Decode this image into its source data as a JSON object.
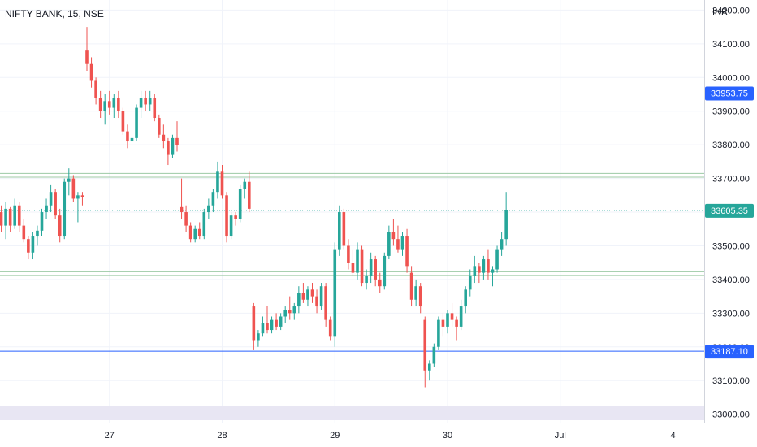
{
  "chart_data": {
    "type": "candlestick",
    "title": "NIFTY BANK, 15, NSE",
    "currency": "INR",
    "ylim": [
      32975,
      34230
    ],
    "y_ticks": [
      33000,
      33100,
      33200,
      33300,
      33400,
      33500,
      33600,
      33700,
      33800,
      33900,
      34000,
      34100,
      34200
    ],
    "y_tick_labels": [
      "33000.00",
      "33100.00",
      "33200.00",
      "33300.00",
      "33400.00",
      "33500.00",
      "33600.00",
      "33700.00",
      "33800.00",
      "33900.00",
      "34000.00",
      "34100.00",
      "34200.00"
    ],
    "x_ticks": [
      {
        "label": "27",
        "bar": 25
      },
      {
        "label": "28",
        "bar": 50
      },
      {
        "label": "29",
        "bar": 75
      },
      {
        "label": "30",
        "bar": 100
      },
      {
        "label": "Jul",
        "bar": 125
      },
      {
        "label": "4",
        "bar": 150
      }
    ],
    "last_price": {
      "value": 33605.35,
      "label": "33605.35",
      "color": "#26a69a"
    },
    "horizontal_levels": [
      {
        "value": 33953.75,
        "label": "33953.75",
        "color": "#2962ff",
        "show_tag": true
      },
      {
        "value": 33187.1,
        "label": "33187.10",
        "color": "#2962ff",
        "show_tag": true
      },
      {
        "value": 33715,
        "label": "",
        "color": "#9cc9a4",
        "show_tag": false
      },
      {
        "value": 33704,
        "label": "",
        "color": "#9cc9a4",
        "show_tag": false
      },
      {
        "value": 33423,
        "label": "",
        "color": "#9cc9a4",
        "show_tag": false
      },
      {
        "value": 33412,
        "label": "",
        "color": "#9cc9a4",
        "show_tag": false
      }
    ],
    "colors": {
      "up": "#26a69a",
      "down": "#ef5350",
      "grid": "#f0f3fa",
      "axis_border": "#d1d4dc",
      "volume_band": "#e8e6f3"
    },
    "candles": [
      [
        33615,
        33640,
        33570,
        33600
      ],
      [
        33600,
        33620,
        33540,
        33560
      ],
      [
        33560,
        33630,
        33520,
        33610
      ],
      [
        33610,
        33615,
        33540,
        33560
      ],
      [
        33560,
        33640,
        33550,
        33620
      ],
      [
        33620,
        33630,
        33540,
        33560
      ],
      [
        33560,
        33580,
        33510,
        33520
      ],
      [
        33520,
        33530,
        33460,
        33480
      ],
      [
        33480,
        33540,
        33460,
        33530
      ],
      [
        33530,
        33560,
        33500,
        33545
      ],
      [
        33545,
        33610,
        33530,
        33600
      ],
      [
        33600,
        33640,
        33580,
        33620
      ],
      [
        33620,
        33680,
        33600,
        33660
      ],
      [
        33660,
        33670,
        33580,
        33590
      ],
      [
        33590,
        33610,
        33510,
        33530
      ],
      [
        33530,
        33700,
        33520,
        33690
      ],
      [
        33690,
        33730,
        33650,
        33700
      ],
      [
        33700,
        33710,
        33630,
        33640
      ],
      [
        33640,
        33660,
        33570,
        33650
      ],
      [
        33650,
        33660,
        33620,
        33645
      ],
      [
        34080,
        34150,
        34020,
        34040
      ],
      [
        34040,
        34060,
        33970,
        33990
      ],
      [
        33990,
        34000,
        33920,
        33940
      ],
      [
        33940,
        33960,
        33880,
        33900
      ],
      [
        33900,
        33950,
        33860,
        33930
      ],
      [
        33930,
        33960,
        33890,
        33910
      ],
      [
        33910,
        33950,
        33880,
        33940
      ],
      [
        33940,
        33960,
        33880,
        33900
      ],
      [
        33900,
        33910,
        33830,
        33840
      ],
      [
        33840,
        33860,
        33790,
        33810
      ],
      [
        33810,
        33830,
        33790,
        33820
      ],
      [
        33820,
        33920,
        33810,
        33910
      ],
      [
        33910,
        33960,
        33880,
        33940
      ],
      [
        33940,
        33960,
        33900,
        33920
      ],
      [
        33920,
        33960,
        33900,
        33940
      ],
      [
        33940,
        33950,
        33870,
        33880
      ],
      [
        33880,
        33890,
        33820,
        33830
      ],
      [
        33830,
        33860,
        33790,
        33810
      ],
      [
        33810,
        33820,
        33740,
        33770
      ],
      [
        33770,
        33830,
        33760,
        33820
      ],
      [
        33820,
        33870,
        33780,
        33800
      ],
      [
        33615,
        33700,
        33580,
        33600
      ],
      [
        33600,
        33620,
        33540,
        33560
      ],
      [
        33560,
        33570,
        33510,
        33520
      ],
      [
        33520,
        33560,
        33510,
        33550
      ],
      [
        33550,
        33570,
        33520,
        33530
      ],
      [
        33530,
        33610,
        33520,
        33600
      ],
      [
        33600,
        33640,
        33580,
        33620
      ],
      [
        33620,
        33670,
        33600,
        33660
      ],
      [
        33660,
        33750,
        33640,
        33720
      ],
      [
        33720,
        33740,
        33640,
        33650
      ],
      [
        33650,
        33660,
        33510,
        33530
      ],
      [
        33530,
        33600,
        33520,
        33590
      ],
      [
        33590,
        33600,
        33560,
        33580
      ],
      [
        33580,
        33680,
        33570,
        33670
      ],
      [
        33670,
        33700,
        33640,
        33690
      ],
      [
        33690,
        33720,
        33600,
        33610
      ],
      [
        33320,
        33330,
        33190,
        33220
      ],
      [
        33220,
        33250,
        33200,
        33240
      ],
      [
        33240,
        33290,
        33230,
        33270
      ],
      [
        33270,
        33320,
        33240,
        33250
      ],
      [
        33250,
        33290,
        33240,
        33280
      ],
      [
        33280,
        33300,
        33250,
        33260
      ],
      [
        33260,
        33300,
        33250,
        33290
      ],
      [
        33290,
        33320,
        33270,
        33310
      ],
      [
        33310,
        33350,
        33280,
        33300
      ],
      [
        33300,
        33330,
        33280,
        33320
      ],
      [
        33320,
        33380,
        33300,
        33360
      ],
      [
        33360,
        33390,
        33330,
        33340
      ],
      [
        33340,
        33380,
        33320,
        33370
      ],
      [
        33370,
        33390,
        33330,
        33350
      ],
      [
        33350,
        33370,
        33300,
        33320
      ],
      [
        33320,
        33390,
        33310,
        33380
      ],
      [
        33380,
        33390,
        33260,
        33280
      ],
      [
        33280,
        33290,
        33220,
        33230
      ],
      [
        33230,
        33510,
        33200,
        33490
      ],
      [
        33490,
        33620,
        33470,
        33600
      ],
      [
        33600,
        33610,
        33490,
        33500
      ],
      [
        33500,
        33520,
        33430,
        33450
      ],
      [
        33450,
        33490,
        33410,
        33420
      ],
      [
        33420,
        33510,
        33400,
        33490
      ],
      [
        33490,
        33500,
        33380,
        33390
      ],
      [
        33390,
        33430,
        33370,
        33410
      ],
      [
        33410,
        33480,
        33390,
        33460
      ],
      [
        33460,
        33470,
        33380,
        33400
      ],
      [
        33400,
        33420,
        33360,
        33380
      ],
      [
        33380,
        33480,
        33370,
        33470
      ],
      [
        33470,
        33560,
        33460,
        33540
      ],
      [
        33540,
        33580,
        33500,
        33520
      ],
      [
        33520,
        33560,
        33480,
        33490
      ],
      [
        33490,
        33540,
        33470,
        33530
      ],
      [
        33530,
        33550,
        33420,
        33440
      ],
      [
        33420,
        33440,
        33320,
        33340
      ],
      [
        33340,
        33400,
        33320,
        33380
      ],
      [
        33380,
        33390,
        33300,
        33320
      ],
      [
        33280,
        33290,
        33080,
        33130
      ],
      [
        33130,
        33160,
        33100,
        33150
      ],
      [
        33150,
        33210,
        33140,
        33200
      ],
      [
        33200,
        33290,
        33190,
        33280
      ],
      [
        33280,
        33300,
        33230,
        33260
      ],
      [
        33260,
        33310,
        33240,
        33300
      ],
      [
        33300,
        33330,
        33260,
        33280
      ],
      [
        33280,
        33290,
        33220,
        33260
      ],
      [
        33260,
        33340,
        33250,
        33320
      ],
      [
        33320,
        33380,
        33300,
        33370
      ],
      [
        33370,
        33430,
        33350,
        33410
      ],
      [
        33410,
        33470,
        33390,
        33440
      ],
      [
        33440,
        33450,
        33390,
        33420
      ],
      [
        33420,
        33470,
        33400,
        33460
      ],
      [
        33460,
        33490,
        33400,
        33420
      ],
      [
        33420,
        33440,
        33380,
        33430
      ],
      [
        33430,
        33500,
        33420,
        33490
      ],
      [
        33490,
        33540,
        33470,
        33520
      ],
      [
        33520,
        33660,
        33500,
        33605
      ]
    ]
  },
  "title": "NIFTY BANK, 15, NSE",
  "currency": "INR"
}
